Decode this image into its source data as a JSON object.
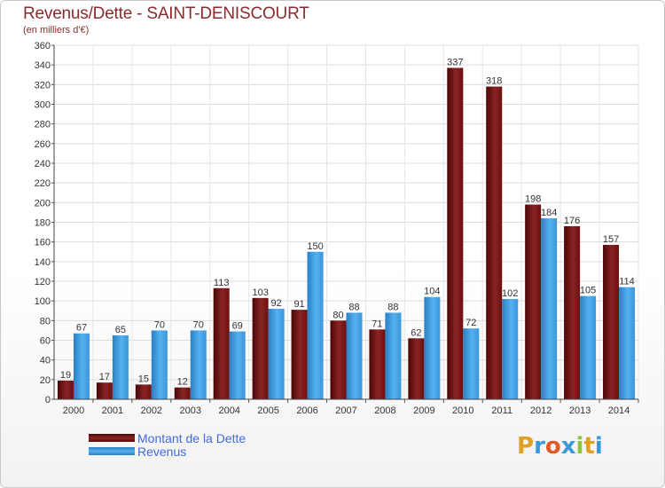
{
  "title": "Revenus/Dette - SAINT-DENISCOURT",
  "subtitle": "(en milliers d'€)",
  "logo": {
    "letters": [
      "P",
      "r",
      "o",
      "x",
      "i",
      "t",
      "i"
    ],
    "colors": [
      "#e0a020",
      "#3a9ad9",
      "#e05a2a",
      "#3a9ad9",
      "#8cc63f",
      "#e0a020",
      "#3a9ad9"
    ]
  },
  "chart_data": {
    "type": "bar",
    "categories": [
      "2000",
      "2001",
      "2002",
      "2003",
      "2004",
      "2005",
      "2006",
      "2007",
      "2008",
      "2009",
      "2010",
      "2011",
      "2012",
      "2013",
      "2014"
    ],
    "series": [
      {
        "name": "Montant de la Dette",
        "color": "#7b1a1a",
        "values": [
          19,
          17,
          15,
          12,
          113,
          103,
          91,
          80,
          71,
          62,
          337,
          318,
          198,
          176,
          157
        ]
      },
      {
        "name": "Revenus",
        "color": "#3f9be0",
        "values": [
          67,
          65,
          70,
          70,
          69,
          92,
          150,
          88,
          88,
          104,
          72,
          102,
          184,
          105,
          114
        ]
      }
    ],
    "ylim": [
      0,
      360
    ],
    "ytick_step": 20,
    "grid": true,
    "legend_position": "bottom-left"
  }
}
